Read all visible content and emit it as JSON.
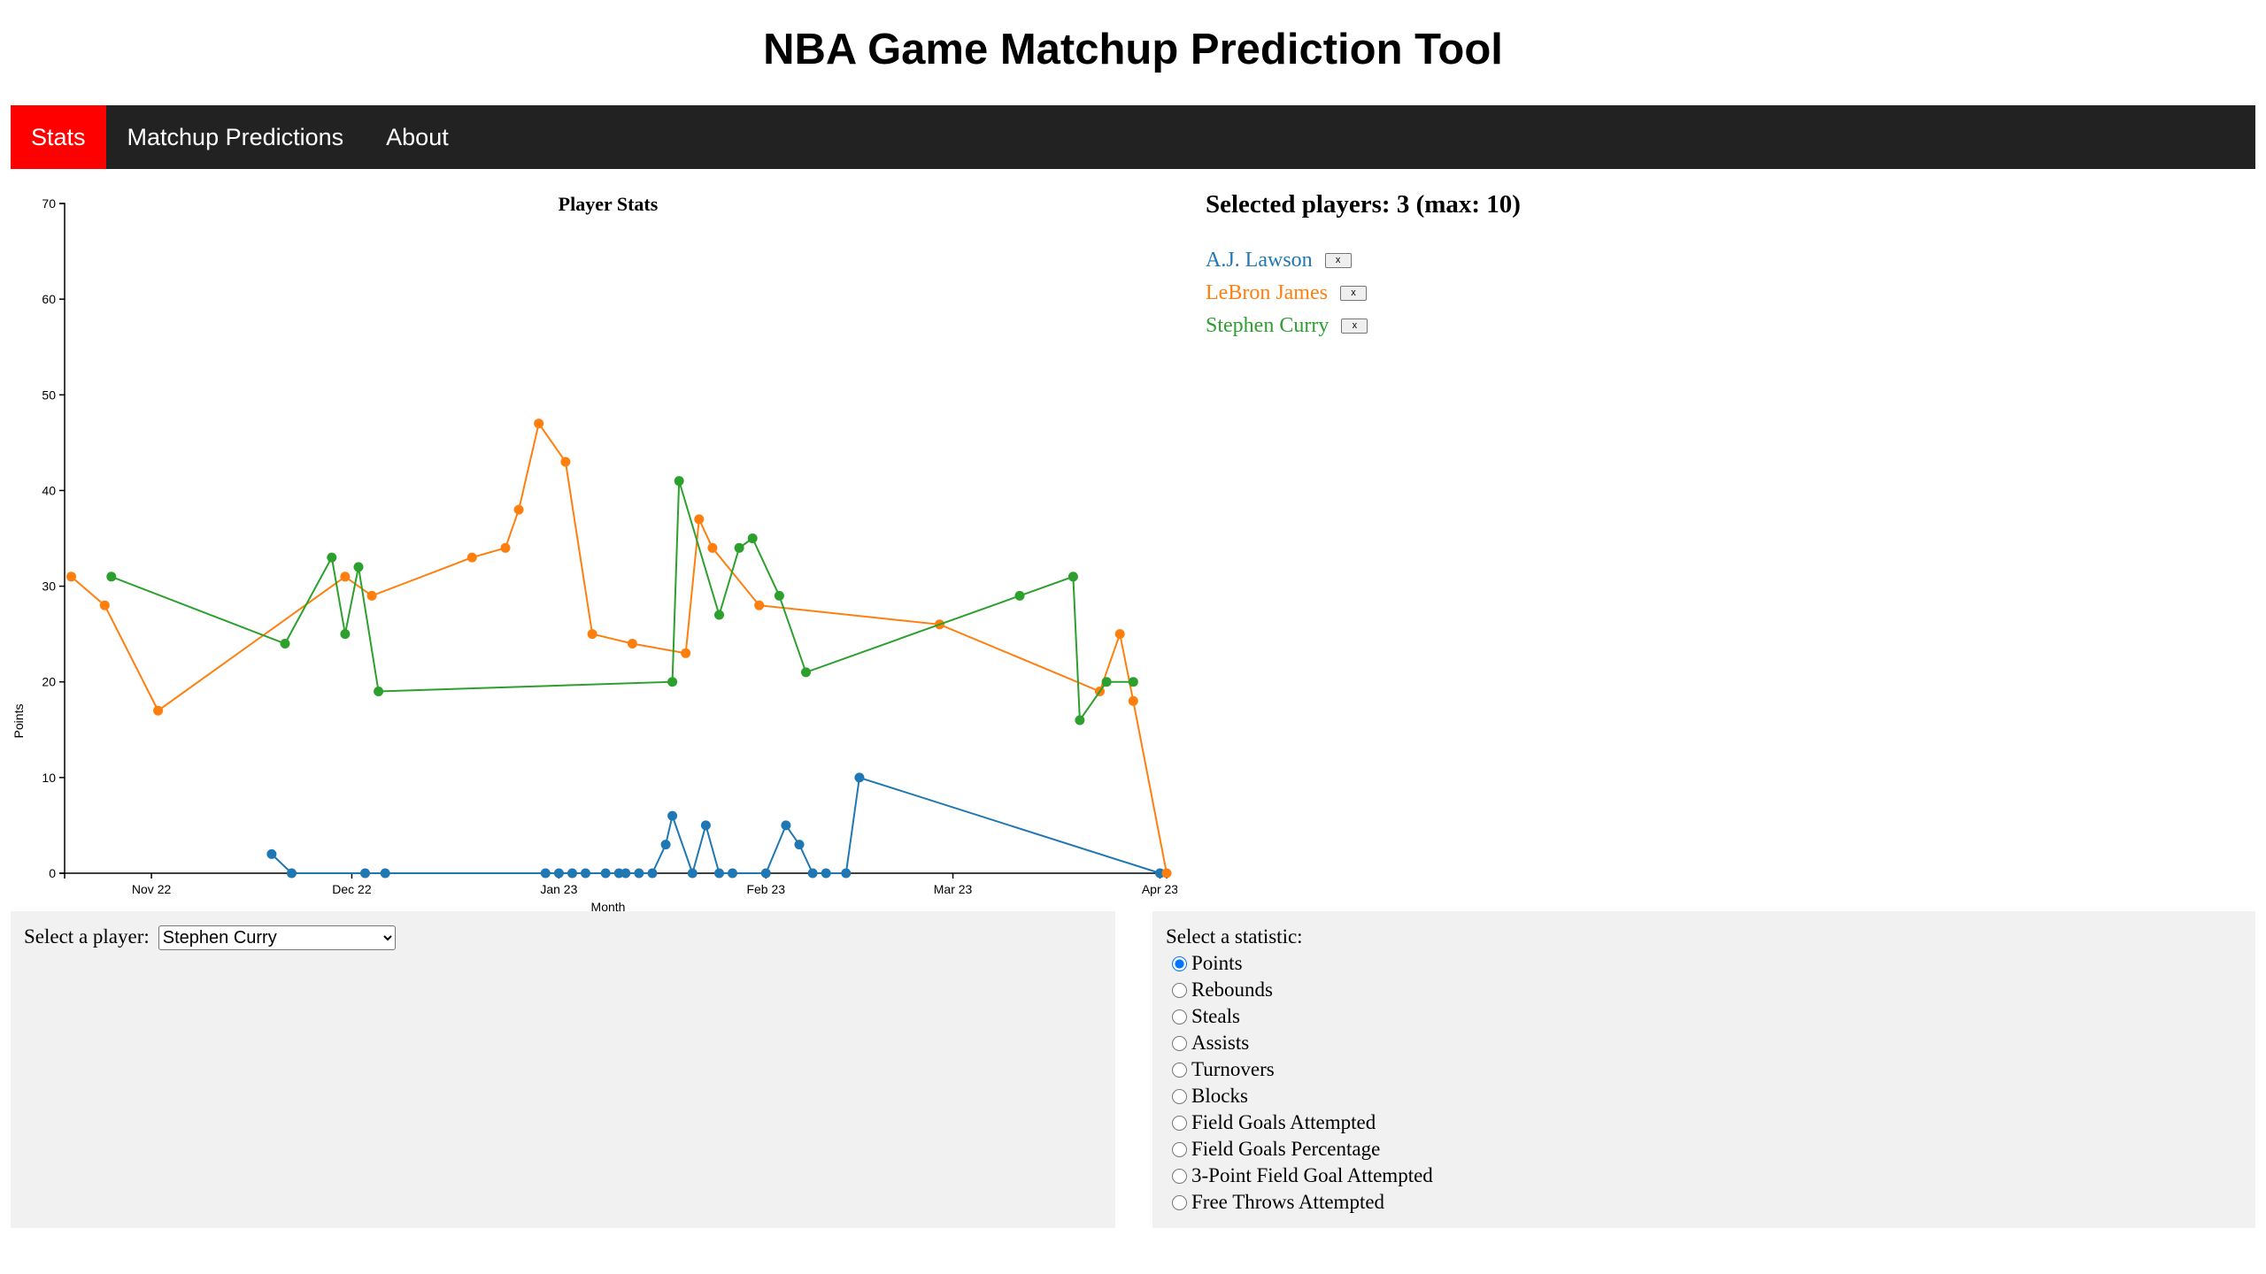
{
  "page": {
    "title": "NBA Game Matchup Prediction Tool"
  },
  "nav": {
    "items": [
      {
        "label": "Stats",
        "active": true
      },
      {
        "label": "Matchup Predictions",
        "active": false
      },
      {
        "label": "About",
        "active": false
      }
    ]
  },
  "selected": {
    "heading": "Selected players: 3 (max: 10)",
    "remove_label": "x",
    "players": [
      {
        "name": "A.J. Lawson",
        "color": "#1f77b4"
      },
      {
        "name": "LeBron James",
        "color": "#ff7f0e"
      },
      {
        "name": "Stephen Curry",
        "color": "#2ca02c"
      }
    ]
  },
  "controls": {
    "player_label": "Select a player:",
    "player_selected": "Stephen Curry",
    "stat_label": "Select a statistic:",
    "stats": [
      "Points",
      "Rebounds",
      "Steals",
      "Assists",
      "Turnovers",
      "Blocks",
      "Field Goals Attempted",
      "Field Goals Percentage",
      "3-Point Field Goal Attempted",
      "Free Throws Attempted"
    ],
    "stat_selected": "Points"
  },
  "chart_data": {
    "type": "line",
    "title": "Player Stats",
    "xlabel": "Month",
    "ylabel": "Points",
    "ylim": [
      0,
      70
    ],
    "yticks": [
      0,
      10,
      20,
      30,
      40,
      50,
      60,
      70
    ],
    "xlim": [
      "2022-10-19",
      "2023-04-02"
    ],
    "xticks": [
      {
        "date": "2022-11-01",
        "label": "Nov 22"
      },
      {
        "date": "2022-12-01",
        "label": "Dec 22"
      },
      {
        "date": "2023-01-01",
        "label": "Jan 23"
      },
      {
        "date": "2023-02-01",
        "label": "Feb 23"
      },
      {
        "date": "2023-03-01",
        "label": "Mar 23"
      },
      {
        "date": "2023-04-01",
        "label": "Apr 23"
      }
    ],
    "grid": false,
    "legend": "none",
    "series": [
      {
        "name": "A.J. Lawson",
        "color": "#1f77b4",
        "points": [
          [
            "2022-11-19",
            2
          ],
          [
            "2022-11-22",
            0
          ],
          [
            "2022-12-03",
            0
          ],
          [
            "2022-12-06",
            0
          ],
          [
            "2022-12-30",
            0
          ],
          [
            "2023-01-01",
            0
          ],
          [
            "2023-01-03",
            0
          ],
          [
            "2023-01-05",
            0
          ],
          [
            "2023-01-08",
            0
          ],
          [
            "2023-01-10",
            0
          ],
          [
            "2023-01-11",
            0
          ],
          [
            "2023-01-13",
            0
          ],
          [
            "2023-01-15",
            0
          ],
          [
            "2023-01-17",
            3
          ],
          [
            "2023-01-18",
            6
          ],
          [
            "2023-01-21",
            0
          ],
          [
            "2023-01-23",
            5
          ],
          [
            "2023-01-25",
            0
          ],
          [
            "2023-01-27",
            0
          ],
          [
            "2023-02-01",
            0
          ],
          [
            "2023-02-04",
            5
          ],
          [
            "2023-02-06",
            3
          ],
          [
            "2023-02-08",
            0
          ],
          [
            "2023-02-10",
            0
          ],
          [
            "2023-02-13",
            0
          ],
          [
            "2023-02-15",
            10
          ],
          [
            "2023-04-01",
            0
          ]
        ]
      },
      {
        "name": "LeBron James",
        "color": "#ff7f0e",
        "points": [
          [
            "2022-10-20",
            31
          ],
          [
            "2022-10-25",
            28
          ],
          [
            "2022-11-02",
            17
          ],
          [
            "2022-11-30",
            31
          ],
          [
            "2022-12-04",
            29
          ],
          [
            "2022-12-19",
            33
          ],
          [
            "2022-12-24",
            34
          ],
          [
            "2022-12-26",
            38
          ],
          [
            "2022-12-29",
            47
          ],
          [
            "2023-01-02",
            43
          ],
          [
            "2023-01-06",
            25
          ],
          [
            "2023-01-12",
            24
          ],
          [
            "2023-01-20",
            23
          ],
          [
            "2023-01-22",
            37
          ],
          [
            "2023-01-24",
            34
          ],
          [
            "2023-01-31",
            28
          ],
          [
            "2023-02-27",
            26
          ],
          [
            "2023-03-23",
            19
          ],
          [
            "2023-03-26",
            25
          ],
          [
            "2023-03-28",
            18
          ],
          [
            "2023-04-02",
            0
          ]
        ]
      },
      {
        "name": "Stephen Curry",
        "color": "#2ca02c",
        "points": [
          [
            "2022-10-26",
            31
          ],
          [
            "2022-11-21",
            24
          ],
          [
            "2022-11-28",
            33
          ],
          [
            "2022-11-30",
            25
          ],
          [
            "2022-12-02",
            32
          ],
          [
            "2022-12-05",
            19
          ],
          [
            "2023-01-18",
            20
          ],
          [
            "2023-01-19",
            41
          ],
          [
            "2023-01-25",
            27
          ],
          [
            "2023-01-28",
            34
          ],
          [
            "2023-01-30",
            35
          ],
          [
            "2023-02-03",
            29
          ],
          [
            "2023-02-07",
            21
          ],
          [
            "2023-03-11",
            29
          ],
          [
            "2023-03-19",
            31
          ],
          [
            "2023-03-20",
            16
          ],
          [
            "2023-03-24",
            20
          ],
          [
            "2023-03-28",
            20
          ]
        ]
      }
    ]
  }
}
